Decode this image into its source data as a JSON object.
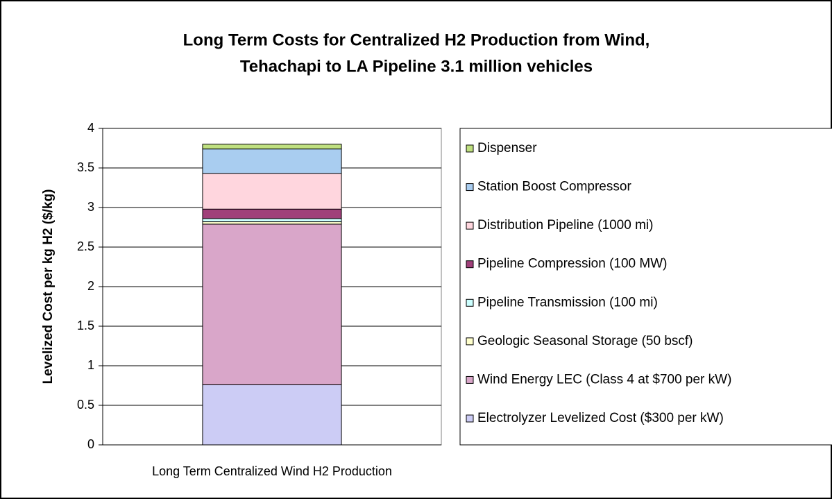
{
  "chart_data": {
    "type": "stacked_bar",
    "title": [
      "Long Term Costs for Centralized H2 Production from Wind,",
      "Tehachapi to LA Pipeline 3.1 million vehicles"
    ],
    "y_label": "Levelized Cost per kg H2 ($/kg)",
    "categories": [
      "Long Term Centralized Wind H2 Production"
    ],
    "series": [
      {
        "name": "Electrolyzer Levelized Cost ($300 per kW)",
        "color": "#ccccf5",
        "values": [
          0.76
        ]
      },
      {
        "name": "Wind Energy LEC (Class 4 at $700 per kW)",
        "color": "#d9a6c9",
        "values": [
          2.03
        ]
      },
      {
        "name": "Geologic Seasonal Storage (50 bscf)",
        "color": "#ffffcc",
        "values": [
          0.03
        ]
      },
      {
        "name": "Pipeline Transmission (100 mi)",
        "color": "#ccffff",
        "values": [
          0.04
        ]
      },
      {
        "name": "Pipeline Compression (100 MW)",
        "color": "#a0407a",
        "values": [
          0.12
        ]
      },
      {
        "name": "Distribution Pipeline (1000 mi)",
        "color": "#ffd6de",
        "values": [
          0.45
        ]
      },
      {
        "name": "Station Boost Compressor",
        "color": "#a9cdf0",
        "values": [
          0.31
        ]
      },
      {
        "name": "Dispenser",
        "color": "#bfe080",
        "values": [
          0.06
        ]
      }
    ],
    "ylim": [
      0,
      4
    ],
    "yticks": [
      0,
      0.5,
      1,
      1.5,
      2,
      2.5,
      3,
      3.5,
      4
    ],
    "grid": true,
    "legend": "right"
  }
}
